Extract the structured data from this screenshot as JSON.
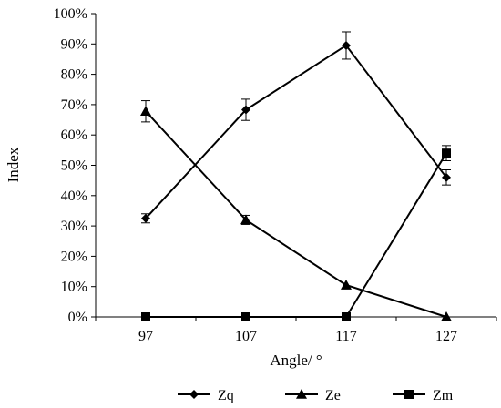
{
  "chart_data": {
    "type": "line",
    "categories": [
      "97",
      "107",
      "117",
      "127"
    ],
    "x_unit_ticks": [
      97,
      107,
      117,
      127
    ],
    "xlabel": "Angle/ °",
    "ylabel": "Index",
    "ylim": [
      0,
      100
    ],
    "y_tick_values": [
      0,
      10,
      20,
      30,
      40,
      50,
      60,
      70,
      80,
      90,
      100
    ],
    "y_tick_labels": [
      "0%",
      "10%",
      "20%",
      "30%",
      "40%",
      "50%",
      "60%",
      "70%",
      "80%",
      "90%",
      "100%"
    ],
    "grid": false,
    "legend_position": "bottom",
    "series": [
      {
        "name": "Zq",
        "marker": "diamond",
        "values": [
          32.5,
          68.3,
          89.5,
          46.0
        ],
        "error": [
          1.5,
          3.5,
          4.5,
          2.5
        ]
      },
      {
        "name": "Ze",
        "marker": "triangle",
        "values": [
          67.8,
          32.0,
          10.5,
          0.0
        ],
        "error": [
          3.5,
          1.5,
          0,
          0
        ]
      },
      {
        "name": "Zm",
        "marker": "square",
        "values": [
          0.0,
          0.0,
          0.0,
          54.0
        ],
        "error": [
          0,
          0,
          0,
          2.5
        ]
      }
    ],
    "line_color": "#000000"
  }
}
